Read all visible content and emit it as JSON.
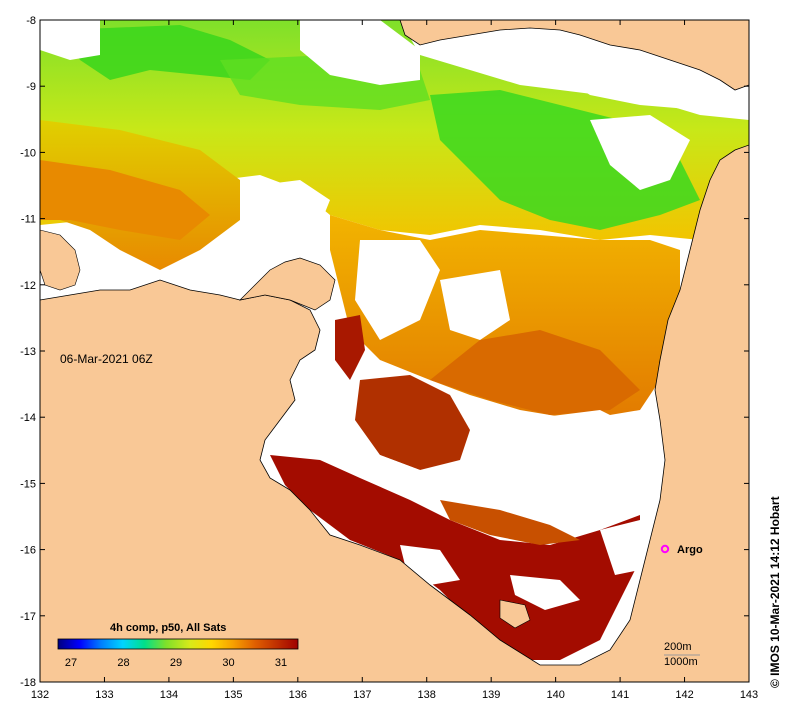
{
  "map": {
    "date_label": "06-Mar-2021 06Z",
    "credit": "© IMOS 10-Mar-2021 14:12 Hobart",
    "x_axis": {
      "ticks": [
        "132",
        "133",
        "134",
        "135",
        "136",
        "137",
        "138",
        "139",
        "140",
        "141",
        "142",
        "143"
      ]
    },
    "y_axis": {
      "ticks": [
        "-8",
        "-9",
        "-10",
        "-11",
        "-12",
        "-13",
        "-14",
        "-15",
        "-16",
        "-17",
        "-18"
      ]
    },
    "colorbar": {
      "title": "4h comp, p50, All Sats",
      "ticks": [
        "27",
        "28",
        "29",
        "30",
        "31"
      ],
      "stops": [
        "#00007f",
        "#0000ff",
        "#007fff",
        "#00d4ff",
        "#00e08a",
        "#7fe02a",
        "#d8ea1a",
        "#ffd700",
        "#f7a000",
        "#e06000",
        "#c03000",
        "#a00000"
      ]
    },
    "marker": {
      "label": "Argo",
      "color": "#ff00ff"
    },
    "isobaths": [
      "200m",
      "1000m"
    ],
    "colors": {
      "land": "#f9c896",
      "no_data": "#ffffff",
      "sst_green": "#40dc1e",
      "sst_yellow": "#e8d800",
      "sst_orange": "#e88a00",
      "sst_darkorange": "#c85a00",
      "sst_red": "#a00c00"
    }
  }
}
